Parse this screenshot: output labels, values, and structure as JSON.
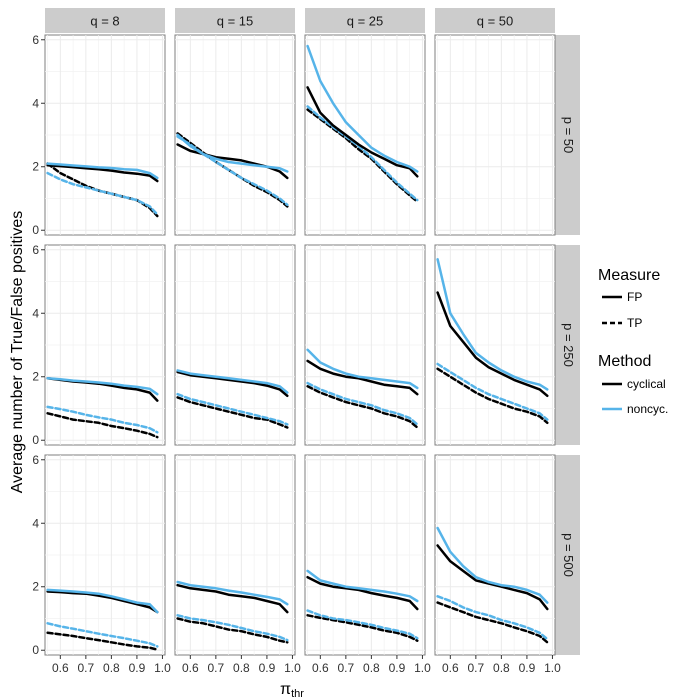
{
  "chart_data": {
    "type": "line",
    "title": "",
    "xlabel": "π",
    "xlabel_sub": "thr",
    "ylabel": "Average number of True/False positives",
    "xlim": [
      0.55,
      1.0
    ],
    "ylim": [
      0,
      6
    ],
    "xticks": [
      "0.6",
      "0.7",
      "0.8",
      "0.9",
      "1.0"
    ],
    "yticks": [
      "0",
      "2",
      "4",
      "6"
    ],
    "col_labels": [
      "q = 8",
      "q = 15",
      "q = 25",
      "q = 50"
    ],
    "row_labels": [
      "p = 50",
      "p = 250",
      "p = 500"
    ],
    "legend": {
      "measure_title": "Measure",
      "measure_items": [
        "FP",
        "TP"
      ],
      "method_title": "Method",
      "method_items": [
        "cyclical",
        "noncyc."
      ]
    },
    "colors": {
      "cyclical": "#000000",
      "noncyc.": "#56B4E9",
      "strip": "#CCCCCC",
      "grid": "#EBEBEB"
    },
    "x": [
      0.55,
      0.6,
      0.65,
      0.7,
      0.75,
      0.8,
      0.85,
      0.9,
      0.95,
      0.98
    ],
    "panels": [
      {
        "row": 0,
        "col": 0,
        "series": [
          {
            "method": "cyclical",
            "measure": "FP",
            "values": [
              2.05,
              2.02,
              1.99,
              1.95,
              1.92,
              1.88,
              1.82,
              1.78,
              1.72,
              1.55
            ]
          },
          {
            "method": "noncyc.",
            "measure": "FP",
            "values": [
              2.1,
              2.07,
              2.04,
              2.01,
              1.98,
              1.96,
              1.92,
              1.9,
              1.8,
              1.65
            ]
          },
          {
            "method": "cyclical",
            "measure": "TP",
            "values": [
              2.1,
              1.8,
              1.6,
              1.4,
              1.25,
              1.15,
              1.05,
              0.95,
              0.7,
              0.45
            ]
          },
          {
            "method": "noncyc.",
            "measure": "TP",
            "values": [
              1.8,
              1.6,
              1.45,
              1.35,
              1.25,
              1.15,
              1.05,
              0.95,
              0.75,
              0.5
            ]
          }
        ]
      },
      {
        "row": 0,
        "col": 1,
        "series": [
          {
            "method": "cyclical",
            "measure": "FP",
            "values": [
              2.7,
              2.5,
              2.4,
              2.3,
              2.25,
              2.2,
              2.1,
              2.0,
              1.85,
              1.65
            ]
          },
          {
            "method": "noncyc.",
            "measure": "FP",
            "values": [
              3.0,
              2.65,
              2.4,
              2.25,
              2.15,
              2.1,
              2.05,
              2.0,
              1.95,
              1.85
            ]
          },
          {
            "method": "cyclical",
            "measure": "TP",
            "values": [
              3.05,
              2.75,
              2.45,
              2.15,
              1.9,
              1.65,
              1.4,
              1.2,
              0.95,
              0.75
            ]
          },
          {
            "method": "noncyc.",
            "measure": "TP",
            "values": [
              2.95,
              2.7,
              2.4,
              2.15,
              1.9,
              1.65,
              1.45,
              1.25,
              1.0,
              0.8
            ]
          }
        ]
      },
      {
        "row": 0,
        "col": 2,
        "series": [
          {
            "method": "cyclical",
            "measure": "FP",
            "values": [
              4.5,
              3.7,
              3.3,
              3.0,
              2.7,
              2.45,
              2.25,
              2.05,
              1.95,
              1.7
            ]
          },
          {
            "method": "noncyc.",
            "measure": "FP",
            "values": [
              5.8,
              4.7,
              4.0,
              3.4,
              3.0,
              2.6,
              2.35,
              2.15,
              2.0,
              1.85
            ]
          },
          {
            "method": "cyclical",
            "measure": "TP",
            "values": [
              3.8,
              3.5,
              3.2,
              2.9,
              2.55,
              2.25,
              1.85,
              1.45,
              1.1,
              0.9
            ]
          },
          {
            "method": "noncyc.",
            "measure": "TP",
            "values": [
              3.9,
              3.55,
              3.25,
              2.95,
              2.65,
              2.3,
              1.9,
              1.5,
              1.15,
              0.95
            ]
          }
        ]
      },
      {
        "row": 0,
        "col": 3,
        "series": []
      },
      {
        "row": 1,
        "col": 0,
        "series": [
          {
            "method": "cyclical",
            "measure": "FP",
            "values": [
              1.95,
              1.9,
              1.85,
              1.82,
              1.78,
              1.72,
              1.65,
              1.6,
              1.5,
              1.25
            ]
          },
          {
            "method": "noncyc.",
            "measure": "FP",
            "values": [
              1.95,
              1.92,
              1.88,
              1.85,
              1.82,
              1.78,
              1.72,
              1.68,
              1.62,
              1.45
            ]
          },
          {
            "method": "cyclical",
            "measure": "TP",
            "values": [
              0.85,
              0.75,
              0.65,
              0.6,
              0.55,
              0.45,
              0.38,
              0.3,
              0.2,
              0.1
            ]
          },
          {
            "method": "noncyc.",
            "measure": "TP",
            "values": [
              1.05,
              0.98,
              0.9,
              0.8,
              0.72,
              0.65,
              0.55,
              0.48,
              0.38,
              0.25
            ]
          }
        ]
      },
      {
        "row": 1,
        "col": 1,
        "series": [
          {
            "method": "cyclical",
            "measure": "FP",
            "values": [
              2.15,
              2.05,
              2.0,
              1.95,
              1.9,
              1.85,
              1.8,
              1.72,
              1.6,
              1.4
            ]
          },
          {
            "method": "noncyc.",
            "measure": "FP",
            "values": [
              2.2,
              2.1,
              2.05,
              2.0,
              1.95,
              1.9,
              1.85,
              1.8,
              1.7,
              1.5
            ]
          },
          {
            "method": "cyclical",
            "measure": "TP",
            "values": [
              1.35,
              1.2,
              1.1,
              1.0,
              0.9,
              0.8,
              0.7,
              0.65,
              0.5,
              0.4
            ]
          },
          {
            "method": "noncyc.",
            "measure": "TP",
            "values": [
              1.45,
              1.3,
              1.2,
              1.1,
              1.0,
              0.9,
              0.8,
              0.7,
              0.6,
              0.5
            ]
          }
        ]
      },
      {
        "row": 1,
        "col": 2,
        "series": [
          {
            "method": "cyclical",
            "measure": "FP",
            "values": [
              2.5,
              2.25,
              2.1,
              2.0,
              1.95,
              1.85,
              1.75,
              1.7,
              1.65,
              1.45
            ]
          },
          {
            "method": "noncyc.",
            "measure": "FP",
            "values": [
              2.85,
              2.45,
              2.25,
              2.1,
              2.0,
              1.95,
              1.9,
              1.85,
              1.8,
              1.65
            ]
          },
          {
            "method": "cyclical",
            "measure": "TP",
            "values": [
              1.7,
              1.5,
              1.35,
              1.2,
              1.1,
              1.0,
              0.85,
              0.75,
              0.6,
              0.4
            ]
          },
          {
            "method": "noncyc.",
            "measure": "TP",
            "values": [
              1.8,
              1.6,
              1.45,
              1.3,
              1.2,
              1.1,
              0.95,
              0.85,
              0.7,
              0.5
            ]
          }
        ]
      },
      {
        "row": 1,
        "col": 3,
        "series": [
          {
            "method": "cyclical",
            "measure": "FP",
            "values": [
              4.65,
              3.6,
              3.1,
              2.6,
              2.3,
              2.1,
              1.9,
              1.75,
              1.6,
              1.4
            ]
          },
          {
            "method": "noncyc.",
            "measure": "FP",
            "values": [
              5.7,
              4.0,
              3.35,
              2.75,
              2.45,
              2.2,
              2.0,
              1.85,
              1.75,
              1.6
            ]
          },
          {
            "method": "cyclical",
            "measure": "TP",
            "values": [
              2.25,
              2.0,
              1.75,
              1.5,
              1.3,
              1.15,
              1.0,
              0.9,
              0.75,
              0.55
            ]
          },
          {
            "method": "noncyc.",
            "measure": "TP",
            "values": [
              2.4,
              2.15,
              1.9,
              1.65,
              1.45,
              1.3,
              1.15,
              1.0,
              0.85,
              0.65
            ]
          }
        ]
      },
      {
        "row": 2,
        "col": 0,
        "series": [
          {
            "method": "cyclical",
            "measure": "FP",
            "values": [
              1.85,
              1.83,
              1.8,
              1.78,
              1.72,
              1.65,
              1.55,
              1.45,
              1.35,
              1.2
            ]
          },
          {
            "method": "noncyc.",
            "measure": "FP",
            "values": [
              1.9,
              1.88,
              1.85,
              1.82,
              1.78,
              1.7,
              1.6,
              1.5,
              1.45,
              1.2
            ]
          },
          {
            "method": "cyclical",
            "measure": "TP",
            "values": [
              0.55,
              0.5,
              0.45,
              0.38,
              0.32,
              0.25,
              0.18,
              0.12,
              0.08,
              0.02
            ]
          },
          {
            "method": "noncyc.",
            "measure": "TP",
            "values": [
              0.85,
              0.75,
              0.68,
              0.6,
              0.52,
              0.45,
              0.38,
              0.3,
              0.22,
              0.12
            ]
          }
        ]
      },
      {
        "row": 2,
        "col": 1,
        "series": [
          {
            "method": "cyclical",
            "measure": "FP",
            "values": [
              2.05,
              1.95,
              1.9,
              1.85,
              1.75,
              1.7,
              1.65,
              1.55,
              1.45,
              1.2
            ]
          },
          {
            "method": "noncyc.",
            "measure": "FP",
            "values": [
              2.15,
              2.05,
              2.0,
              1.95,
              1.88,
              1.82,
              1.75,
              1.68,
              1.6,
              1.45
            ]
          },
          {
            "method": "cyclical",
            "measure": "TP",
            "values": [
              1.0,
              0.9,
              0.85,
              0.75,
              0.65,
              0.6,
              0.5,
              0.42,
              0.3,
              0.25
            ]
          },
          {
            "method": "noncyc.",
            "measure": "TP",
            "values": [
              1.1,
              1.0,
              0.95,
              0.88,
              0.8,
              0.7,
              0.6,
              0.52,
              0.42,
              0.32
            ]
          }
        ]
      },
      {
        "row": 2,
        "col": 2,
        "series": [
          {
            "method": "cyclical",
            "measure": "FP",
            "values": [
              2.3,
              2.1,
              2.0,
              1.95,
              1.9,
              1.8,
              1.72,
              1.65,
              1.55,
              1.3
            ]
          },
          {
            "method": "noncyc.",
            "measure": "FP",
            "values": [
              2.5,
              2.2,
              2.1,
              2.0,
              1.95,
              1.9,
              1.85,
              1.78,
              1.7,
              1.55
            ]
          },
          {
            "method": "cyclical",
            "measure": "TP",
            "values": [
              1.1,
              1.02,
              0.95,
              0.88,
              0.8,
              0.72,
              0.62,
              0.55,
              0.42,
              0.3
            ]
          },
          {
            "method": "noncyc.",
            "measure": "TP",
            "values": [
              1.25,
              1.1,
              1.0,
              0.95,
              0.88,
              0.8,
              0.7,
              0.62,
              0.52,
              0.38
            ]
          }
        ]
      },
      {
        "row": 2,
        "col": 3,
        "series": [
          {
            "method": "cyclical",
            "measure": "FP",
            "values": [
              3.3,
              2.8,
              2.5,
              2.2,
              2.1,
              2.0,
              1.9,
              1.8,
              1.6,
              1.3
            ]
          },
          {
            "method": "noncyc.",
            "measure": "FP",
            "values": [
              3.85,
              3.1,
              2.65,
              2.3,
              2.15,
              2.05,
              2.0,
              1.9,
              1.75,
              1.5
            ]
          },
          {
            "method": "cyclical",
            "measure": "TP",
            "values": [
              1.5,
              1.35,
              1.2,
              1.05,
              0.95,
              0.85,
              0.72,
              0.6,
              0.45,
              0.25
            ]
          },
          {
            "method": "noncyc.",
            "measure": "TP",
            "values": [
              1.7,
              1.55,
              1.35,
              1.2,
              1.1,
              0.95,
              0.85,
              0.72,
              0.55,
              0.35
            ]
          }
        ]
      }
    ]
  }
}
